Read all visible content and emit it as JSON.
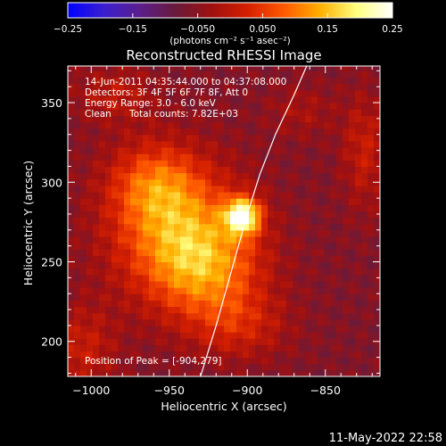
{
  "chart_data": {
    "type": "heatmap",
    "title": "Reconstructed RHESSI Image",
    "xlabel": "Heliocentric X (arcsec)",
    "ylabel": "Heliocentric Y (arcsec)",
    "xlim": [
      -1015,
      -815
    ],
    "ylim": [
      178,
      373
    ],
    "x_ticks": [
      -1000,
      -950,
      -900,
      -850
    ],
    "x_tick_labels": [
      "−1000",
      "−950",
      "−900",
      "−850"
    ],
    "y_ticks": [
      200,
      250,
      300,
      350
    ],
    "y_tick_labels": [
      "200",
      "250",
      "300",
      "350"
    ],
    "colorbar": {
      "range": [
        -0.25,
        0.25
      ],
      "ticks": [
        -0.25,
        -0.15,
        -0.05,
        0.05,
        0.15,
        0.25
      ],
      "tick_labels": [
        "−0.25",
        "−0.15",
        "−0.050",
        "0.050",
        "0.15",
        "0.25"
      ],
      "unit_label": "(photons cm⁻² s⁻¹ asec⁻²)",
      "colormap": [
        "#0000ff",
        "#3a1fd0",
        "#5b1e8c",
        "#6a1a3a",
        "#a01010",
        "#d62000",
        "#ff5a00",
        "#ffb000",
        "#ffff80",
        "#ffffff"
      ]
    },
    "annotations": {
      "time_range": "14-Jun-2011 04:35:44.000 to 04:37:08.000",
      "detectors": "Detectors: 3F 4F 5F 6F 7F 8F, Att 0",
      "energy": "Energy Range: 3.0 - 6.0 keV",
      "algorithm": "Clean",
      "total_counts": "Total counts: 7.82E+03",
      "peak": "Position of Peak = [-904,279]"
    },
    "peak": {
      "x": -904,
      "y": 279
    },
    "limb_curve": {
      "x": [
        -930,
        -920,
        -910,
        -900,
        -892,
        -882,
        -870,
        -862
      ],
      "y": [
        178,
        210,
        245,
        280,
        305,
        330,
        355,
        373
      ]
    },
    "intensity_blobs": [
      {
        "x": -903,
        "y": 279,
        "sigma_x": 8,
        "sigma_y": 8,
        "amp": 0.26
      },
      {
        "x": -945,
        "y": 270,
        "sigma_x": 30,
        "sigma_y": 30,
        "amp": 0.16
      },
      {
        "x": -925,
        "y": 245,
        "sigma_x": 25,
        "sigma_y": 22,
        "amp": 0.12
      },
      {
        "x": -960,
        "y": 300,
        "sigma_x": 20,
        "sigma_y": 18,
        "amp": 0.1
      },
      {
        "x": -905,
        "y": 210,
        "sigma_x": 22,
        "sigma_y": 15,
        "amp": 0.07
      },
      {
        "x": -985,
        "y": 355,
        "sigma_x": 18,
        "sigma_y": 12,
        "amp": 0.06
      },
      {
        "x": -1005,
        "y": 195,
        "sigma_x": 15,
        "sigma_y": 20,
        "amp": 0.07
      },
      {
        "x": -825,
        "y": 320,
        "sigma_x": 10,
        "sigma_y": 25,
        "amp": 0.07
      },
      {
        "x": -865,
        "y": 345,
        "sigma_x": 15,
        "sigma_y": 12,
        "amp": 0.04
      }
    ],
    "background_level": -0.06
  },
  "footer": {
    "timestamp": "11-May-2022 22:58"
  }
}
